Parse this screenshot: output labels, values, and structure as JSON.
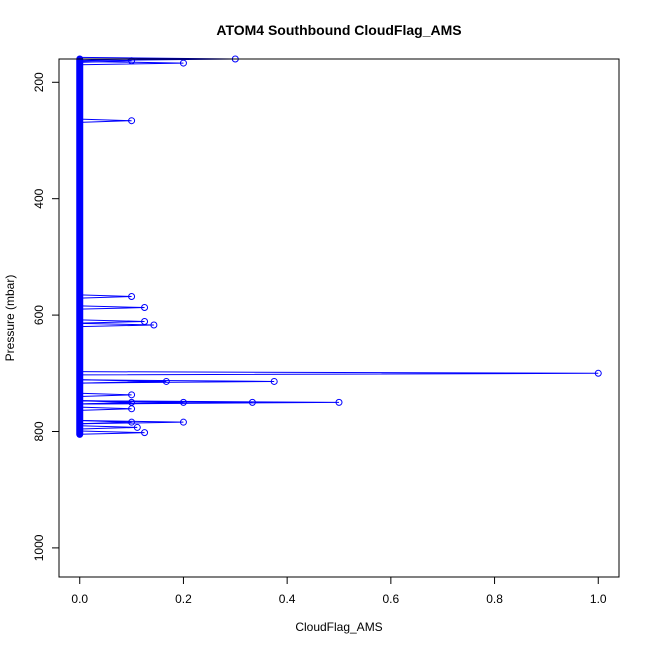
{
  "chart_data": {
    "type": "line",
    "title": "ATOM4 Southbound CloudFlag_AMS",
    "xlabel": "CloudFlag_AMS",
    "ylabel": "Pressure (mbar)",
    "xlim": [
      -0.04,
      1.04
    ],
    "ylim": [
      1050,
      160
    ],
    "y_reversed": true,
    "x_ticks": [
      "0.0",
      "0.2",
      "0.4",
      "0.6",
      "0.8",
      "1.0"
    ],
    "y_ticks": [
      "200",
      "400",
      "600",
      "800",
      "1000"
    ],
    "grid": false,
    "legend": "none",
    "colors": {
      "series": "#0000ff",
      "axis": "#000000"
    },
    "baseline": {
      "x": 0,
      "from_pressure": 160,
      "to_pressure": 805
    },
    "series": [
      {
        "marker": "open-circle",
        "points": [
          {
            "x": 0.3,
            "y": 160
          },
          {
            "x": 0.1,
            "y": 163
          },
          {
            "x": 0.2,
            "y": 167
          },
          {
            "x": 0.1,
            "y": 266
          },
          {
            "x": 0.1,
            "y": 568
          },
          {
            "x": 0.125,
            "y": 587
          },
          {
            "x": 0.125,
            "y": 611
          },
          {
            "x": 0.143,
            "y": 617
          },
          {
            "x": 1.0,
            "y": 700
          },
          {
            "x": 0.167,
            "y": 714
          },
          {
            "x": 0.375,
            "y": 714
          },
          {
            "x": 0.1,
            "y": 737
          },
          {
            "x": 0.1,
            "y": 750
          },
          {
            "x": 0.2,
            "y": 750
          },
          {
            "x": 0.333,
            "y": 750
          },
          {
            "x": 0.5,
            "y": 750
          },
          {
            "x": 0.1,
            "y": 761
          },
          {
            "x": 0.1,
            "y": 784
          },
          {
            "x": 0.2,
            "y": 784
          },
          {
            "x": 0.111,
            "y": 793
          },
          {
            "x": 0.125,
            "y": 802
          }
        ]
      }
    ]
  }
}
